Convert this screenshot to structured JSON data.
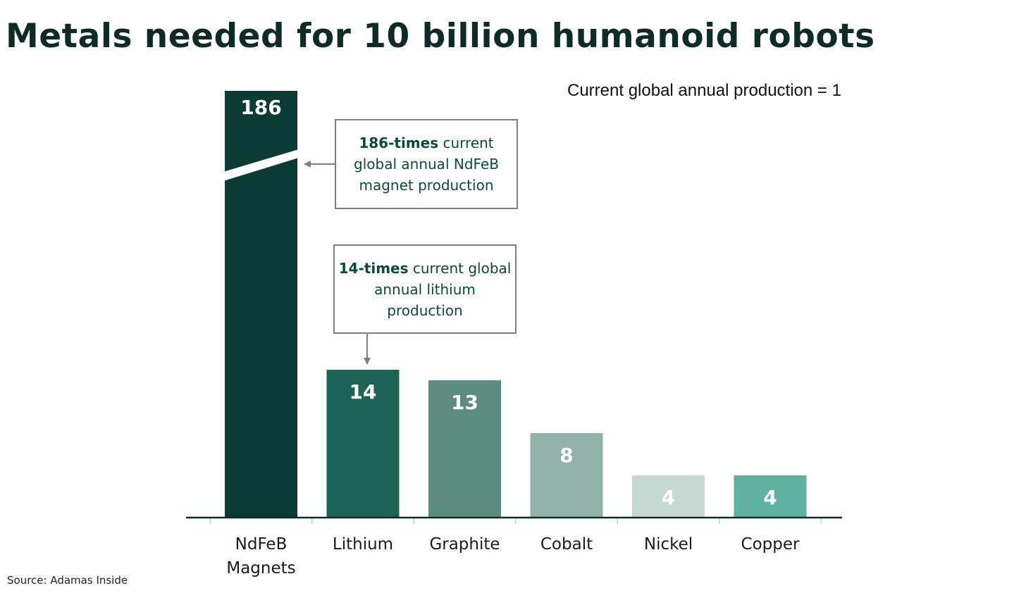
{
  "title": "Metals needed for 10 billion humanoid robots",
  "subtitle": "Current global annual production = 1",
  "source": "Source: Adamas Inside",
  "annotations": {
    "ndfeb": {
      "bold": "186-times",
      "rest": " current global annual NdFeB magnet production"
    },
    "lithium": {
      "bold": "14-times",
      "rest": " current global annual lithium production"
    }
  },
  "chart_data": {
    "type": "bar",
    "title": "Metals needed for 10 billion humanoid robots",
    "categories": [
      "NdFeB Magnets",
      "Lithium",
      "Graphite",
      "Cobalt",
      "Nickel",
      "Copper"
    ],
    "category_lines": [
      [
        "NdFeB",
        "Magnets"
      ],
      [
        "Lithium"
      ],
      [
        "Graphite"
      ],
      [
        "Cobalt"
      ],
      [
        "Nickel"
      ],
      [
        "Copper"
      ]
    ],
    "values": [
      186,
      14,
      13,
      8,
      4,
      4
    ],
    "data_labels": [
      "186",
      "14",
      "13",
      "8",
      "4",
      "4"
    ],
    "colors": [
      "#0b3c33",
      "#1e6456",
      "#5b8c7f",
      "#93b2a9",
      "#c5d8d2",
      "#5fb2a0"
    ],
    "broken_axis_bar": "NdFeB Magnets",
    "xlabel": "",
    "ylabel": "",
    "grid": false,
    "legend": "none"
  }
}
